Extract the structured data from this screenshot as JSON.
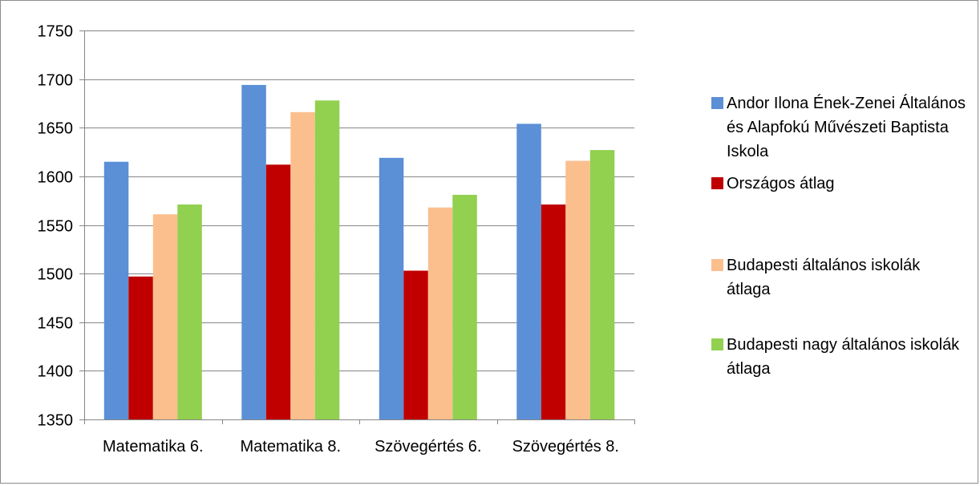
{
  "chart_data": {
    "type": "bar",
    "categories": [
      "Matematika 6.",
      "Matematika 8.",
      "Szövegértés 6.",
      "Szövegértés 8."
    ],
    "series": [
      {
        "name": "Andor Ilona Ének-Zenei Általános és Alapfokú Művészeti Baptista Iskola",
        "color": "#5B8FD6",
        "values": [
          1615,
          1694,
          1619,
          1654
        ]
      },
      {
        "name": "Országos átlag",
        "color": "#C00000",
        "values": [
          1497,
          1612,
          1503,
          1571
        ]
      },
      {
        "name": "Budapesti általános iskolák átlaga",
        "color": "#FBBF8E",
        "values": [
          1561,
          1666,
          1568,
          1616
        ]
      },
      {
        "name": "Budapesti nagy általános iskolák átlaga",
        "color": "#92D050",
        "values": [
          1571,
          1678,
          1581,
          1627
        ]
      }
    ],
    "ylim": [
      1350,
      1750
    ],
    "yticks": [
      1350,
      1400,
      1450,
      1500,
      1550,
      1600,
      1650,
      1700,
      1750
    ],
    "grid": true,
    "legend_position": "right"
  }
}
